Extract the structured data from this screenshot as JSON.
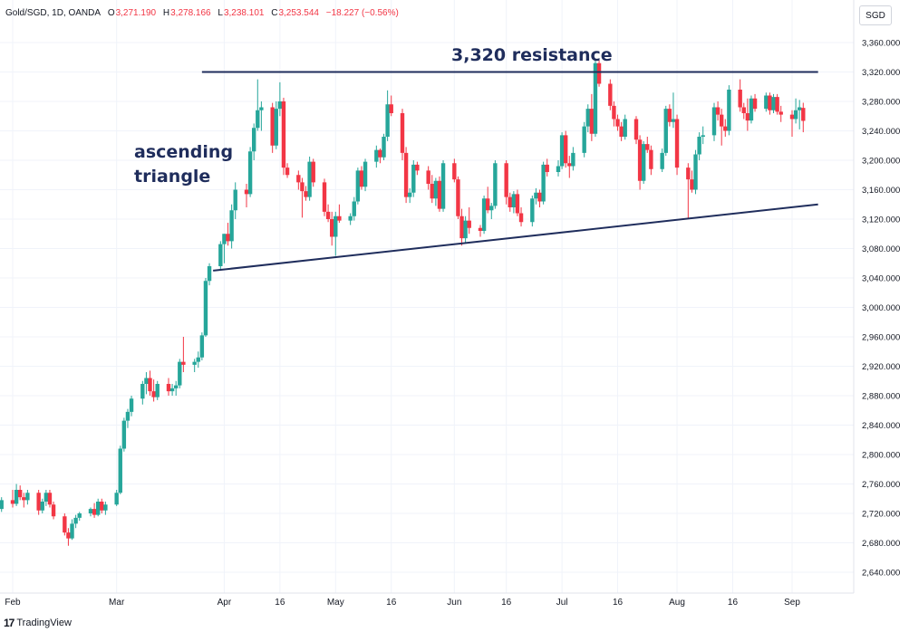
{
  "legend": {
    "symbol": "Gold/SGD, 1D, OANDA",
    "open_label": "O",
    "open": "3,271.190",
    "high_label": "H",
    "high": "3,278.166",
    "low_label": "L",
    "low": "3,238.101",
    "close_label": "C",
    "close": "3,253.544",
    "change": "−18.227 (−0.56%)"
  },
  "currency_button": "SGD",
  "branding": {
    "logo_mark": "17",
    "name": "TradingView"
  },
  "annotations": {
    "resistance": "3,320 resistance",
    "pattern_line1": "ascending",
    "pattern_line2": "triangle"
  },
  "colors": {
    "up": "#26a69a",
    "down": "#f23645",
    "trendline": "#1f2d5c",
    "grid": "#f0f3fa",
    "axis_text": "#131722"
  },
  "chart_data": {
    "type": "candlestick",
    "title": "",
    "xlabel": "",
    "ylabel": "",
    "ylim": [
      2610,
      3390
    ],
    "x_range": [
      "2025-01-30",
      "2025-09-08"
    ],
    "y_ticks": [
      "2,640.000",
      "2,680.000",
      "2,720.000",
      "2,760.000",
      "2,800.000",
      "2,840.000",
      "2,880.000",
      "2,920.000",
      "2,960.000",
      "3,000.000",
      "3,040.000",
      "3,080.000",
      "3,120.000",
      "3,160.000",
      "3,200.000",
      "3,240.000",
      "3,280.000",
      "3,320.000",
      "3,360.000"
    ],
    "y_tick_values": [
      2640,
      2680,
      2720,
      2760,
      2800,
      2840,
      2880,
      2920,
      2960,
      3000,
      3040,
      3080,
      3120,
      3160,
      3200,
      3240,
      3280,
      3320,
      3360
    ],
    "x_ticks": [
      {
        "label": "Feb",
        "date": "2025-02-03"
      },
      {
        "label": "Mar",
        "date": "2025-03-03"
      },
      {
        "label": "Apr",
        "date": "2025-04-01"
      },
      {
        "label": "16",
        "date": "2025-04-16"
      },
      {
        "label": "May",
        "date": "2025-05-01"
      },
      {
        "label": "16",
        "date": "2025-05-16"
      },
      {
        "label": "Jun",
        "date": "2025-06-02"
      },
      {
        "label": "16",
        "date": "2025-06-16"
      },
      {
        "label": "Jul",
        "date": "2025-07-01"
      },
      {
        "label": "16",
        "date": "2025-07-16"
      },
      {
        "label": "Aug",
        "date": "2025-08-01"
      },
      {
        "label": "16",
        "date": "2025-08-16"
      },
      {
        "label": "Sep",
        "date": "2025-09-01"
      }
    ],
    "trendlines": [
      {
        "name": "resistance",
        "from": {
          "date": "2025-03-26",
          "y": 3320
        },
        "to": {
          "date": "2025-09-08",
          "y": 3320
        }
      },
      {
        "name": "support",
        "from": {
          "date": "2025-03-29",
          "y": 3050
        },
        "to": {
          "date": "2025-09-08",
          "y": 3140
        }
      }
    ],
    "candles": [
      [
        "2025-01-30",
        2728,
        2736,
        2722,
        2726
      ],
      [
        "2025-01-31",
        2726,
        2742,
        2722,
        2738
      ],
      [
        "2025-02-03",
        2738,
        2752,
        2728,
        2733
      ],
      [
        "2025-02-04",
        2733,
        2760,
        2730,
        2752
      ],
      [
        "2025-02-05",
        2752,
        2758,
        2738,
        2742
      ],
      [
        "2025-02-06",
        2742,
        2748,
        2728,
        2738
      ],
      [
        "2025-02-07",
        2738,
        2752,
        2732,
        2748
      ],
      [
        "2025-02-10",
        2748,
        2752,
        2718,
        2724
      ],
      [
        "2025-02-11",
        2724,
        2740,
        2720,
        2736
      ],
      [
        "2025-02-12",
        2736,
        2752,
        2730,
        2748
      ],
      [
        "2025-02-13",
        2748,
        2752,
        2728,
        2732
      ],
      [
        "2025-02-14",
        2732,
        2736,
        2712,
        2716
      ],
      [
        "2025-02-17",
        2716,
        2720,
        2690,
        2694
      ],
      [
        "2025-02-18",
        2694,
        2700,
        2676,
        2686
      ],
      [
        "2025-02-19",
        2686,
        2712,
        2684,
        2706
      ],
      [
        "2025-02-20",
        2706,
        2718,
        2700,
        2714
      ],
      [
        "2025-02-21",
        2714,
        2722,
        2710,
        2720
      ],
      [
        "2025-02-24",
        2720,
        2728,
        2716,
        2726
      ],
      [
        "2025-02-25",
        2726,
        2734,
        2714,
        2718
      ],
      [
        "2025-02-26",
        2718,
        2740,
        2716,
        2736
      ],
      [
        "2025-02-27",
        2736,
        2740,
        2720,
        2724
      ],
      [
        "2025-02-28",
        2724,
        2736,
        2718,
        2732
      ],
      [
        "2025-03-03",
        2732,
        2752,
        2730,
        2748
      ],
      [
        "2025-03-04",
        2748,
        2812,
        2746,
        2808
      ],
      [
        "2025-03-05",
        2808,
        2850,
        2804,
        2846
      ],
      [
        "2025-03-06",
        2846,
        2862,
        2836,
        2858
      ],
      [
        "2025-03-07",
        2858,
        2880,
        2852,
        2876
      ],
      [
        "2025-03-10",
        2876,
        2900,
        2868,
        2896
      ],
      [
        "2025-03-11",
        2896,
        2912,
        2882,
        2904
      ],
      [
        "2025-03-12",
        2904,
        2914,
        2880,
        2886
      ],
      [
        "2025-03-13",
        2886,
        2902,
        2872,
        2878
      ],
      [
        "2025-03-14",
        2878,
        2900,
        2874,
        2896
      ],
      [
        "2025-03-17",
        2896,
        2904,
        2880,
        2886
      ],
      [
        "2025-03-18",
        2886,
        2896,
        2880,
        2890
      ],
      [
        "2025-03-19",
        2890,
        2900,
        2880,
        2894
      ],
      [
        "2025-03-20",
        2894,
        2930,
        2890,
        2926
      ],
      [
        "2025-03-21",
        2926,
        2960,
        2912,
        2922
      ],
      [
        "2025-03-24",
        2922,
        2930,
        2912,
        2926
      ],
      [
        "2025-03-25",
        2926,
        2940,
        2918,
        2932
      ],
      [
        "2025-03-26",
        2932,
        2966,
        2928,
        2962
      ],
      [
        "2025-03-27",
        2962,
        3040,
        2960,
        3036
      ],
      [
        "2025-03-28",
        3036,
        3060,
        3030,
        3056
      ],
      [
        "2025-03-31",
        3056,
        3090,
        3050,
        3086
      ],
      [
        "2025-04-01",
        3086,
        3100,
        3060,
        3100
      ],
      [
        "2025-04-02",
        3100,
        3115,
        3084,
        3090
      ],
      [
        "2025-04-03",
        3090,
        3140,
        3080,
        3132
      ],
      [
        "2025-04-04",
        3132,
        3170,
        3120,
        3160
      ],
      [
        "2025-04-07",
        3160,
        3168,
        3136,
        3154
      ],
      [
        "2025-04-08",
        3154,
        3218,
        3150,
        3212
      ],
      [
        "2025-04-09",
        3212,
        3250,
        3200,
        3244
      ],
      [
        "2025-04-10",
        3244,
        3310,
        3240,
        3268
      ],
      [
        "2025-04-11",
        3268,
        3280,
        3240,
        3272
      ],
      [
        "2025-04-14",
        3272,
        3278,
        3210,
        3220
      ],
      [
        "2025-04-15",
        3220,
        3280,
        3215,
        3270
      ],
      [
        "2025-04-16",
        3270,
        3306,
        3260,
        3280
      ],
      [
        "2025-04-17",
        3280,
        3285,
        3180,
        3190
      ],
      [
        "2025-04-18",
        3190,
        3196,
        3176,
        3180
      ],
      [
        "2025-04-21",
        3180,
        3186,
        3160,
        3170
      ],
      [
        "2025-04-22",
        3170,
        3176,
        3122,
        3158
      ],
      [
        "2025-04-23",
        3158,
        3165,
        3145,
        3150
      ],
      [
        "2025-04-24",
        3150,
        3205,
        3145,
        3198
      ],
      [
        "2025-04-25",
        3198,
        3202,
        3164,
        3170
      ],
      [
        "2025-04-28",
        3170,
        3175,
        3124,
        3130
      ],
      [
        "2025-04-29",
        3130,
        3140,
        3116,
        3120
      ],
      [
        "2025-04-30",
        3120,
        3130,
        3084,
        3096
      ],
      [
        "2025-05-01",
        3096,
        3130,
        3070,
        3124
      ],
      [
        "2025-05-02",
        3124,
        3140,
        3115,
        3118
      ],
      [
        "2025-05-05",
        3118,
        3128,
        3112,
        3124
      ],
      [
        "2025-05-06",
        3124,
        3150,
        3118,
        3144
      ],
      [
        "2025-05-07",
        3144,
        3190,
        3140,
        3186
      ],
      [
        "2025-05-08",
        3186,
        3192,
        3160,
        3164
      ],
      [
        "2025-05-09",
        3164,
        3202,
        3158,
        3198
      ],
      [
        "2025-05-12",
        3198,
        3220,
        3190,
        3214
      ],
      [
        "2025-05-13",
        3214,
        3216,
        3196,
        3204
      ],
      [
        "2025-05-14",
        3204,
        3236,
        3200,
        3232
      ],
      [
        "2025-05-15",
        3232,
        3295,
        3226,
        3276
      ],
      [
        "2025-05-16",
        3276,
        3288,
        3260,
        3264
      ],
      [
        "2025-05-19",
        3264,
        3270,
        3200,
        3210
      ],
      [
        "2025-05-20",
        3210,
        3218,
        3142,
        3150
      ],
      [
        "2025-05-21",
        3150,
        3162,
        3142,
        3156
      ],
      [
        "2025-05-22",
        3156,
        3200,
        3150,
        3194
      ],
      [
        "2025-05-23",
        3194,
        3198,
        3180,
        3186
      ],
      [
        "2025-05-26",
        3186,
        3192,
        3160,
        3168
      ],
      [
        "2025-05-27",
        3168,
        3180,
        3142,
        3148
      ],
      [
        "2025-05-28",
        3148,
        3176,
        3138,
        3172
      ],
      [
        "2025-05-29",
        3172,
        3178,
        3130,
        3134
      ],
      [
        "2025-05-30",
        3134,
        3200,
        3130,
        3196
      ],
      [
        "2025-06-02",
        3196,
        3202,
        3170,
        3174
      ],
      [
        "2025-06-03",
        3174,
        3178,
        3120,
        3124
      ],
      [
        "2025-06-04",
        3124,
        3134,
        3084,
        3094
      ],
      [
        "2025-06-05",
        3094,
        3124,
        3088,
        3118
      ],
      [
        "2025-06-06",
        3118,
        3136,
        3100,
        3108
      ],
      [
        "2025-06-09",
        3108,
        3112,
        3096,
        3104
      ],
      [
        "2025-06-10",
        3104,
        3152,
        3100,
        3148
      ],
      [
        "2025-06-11",
        3148,
        3164,
        3128,
        3132
      ],
      [
        "2025-06-12",
        3132,
        3142,
        3120,
        3138
      ],
      [
        "2025-06-13",
        3138,
        3200,
        3134,
        3196
      ],
      [
        "2025-06-16",
        3196,
        3200,
        3140,
        3150
      ],
      [
        "2025-06-17",
        3150,
        3156,
        3130,
        3136
      ],
      [
        "2025-06-18",
        3136,
        3158,
        3128,
        3154
      ],
      [
        "2025-06-19",
        3154,
        3160,
        3124,
        3128
      ],
      [
        "2025-06-20",
        3128,
        3136,
        3110,
        3116
      ],
      [
        "2025-06-23",
        3116,
        3152,
        3110,
        3148
      ],
      [
        "2025-06-24",
        3148,
        3162,
        3140,
        3156
      ],
      [
        "2025-06-25",
        3156,
        3160,
        3136,
        3144
      ],
      [
        "2025-06-26",
        3144,
        3198,
        3140,
        3194
      ],
      [
        "2025-06-27",
        3194,
        3202,
        3178,
        3184
      ],
      [
        "2025-06-30",
        3184,
        3200,
        3178,
        3192
      ],
      [
        "2025-07-01",
        3192,
        3238,
        3188,
        3234
      ],
      [
        "2025-07-02",
        3234,
        3240,
        3190,
        3196
      ],
      [
        "2025-07-03",
        3196,
        3206,
        3176,
        3192
      ],
      [
        "2025-07-04",
        3192,
        3218,
        3186,
        3210
      ],
      [
        "2025-07-07",
        3210,
        3252,
        3204,
        3246
      ],
      [
        "2025-07-08",
        3246,
        3276,
        3238,
        3270
      ],
      [
        "2025-07-09",
        3270,
        3290,
        3226,
        3236
      ],
      [
        "2025-07-10",
        3236,
        3336,
        3232,
        3332
      ],
      [
        "2025-07-11",
        3332,
        3336,
        3300,
        3304
      ],
      [
        "2025-07-14",
        3304,
        3310,
        3268,
        3274
      ],
      [
        "2025-07-15",
        3274,
        3280,
        3246,
        3256
      ],
      [
        "2025-07-16",
        3256,
        3262,
        3240,
        3246
      ],
      [
        "2025-07-17",
        3246,
        3252,
        3226,
        3232
      ],
      [
        "2025-07-18",
        3232,
        3262,
        3228,
        3256
      ],
      [
        "2025-07-21",
        3256,
        3260,
        3222,
        3228
      ],
      [
        "2025-07-22",
        3228,
        3234,
        3160,
        3172
      ],
      [
        "2025-07-23",
        3172,
        3226,
        3168,
        3222
      ],
      [
        "2025-07-24",
        3222,
        3232,
        3210,
        3214
      ],
      [
        "2025-07-25",
        3214,
        3220,
        3180,
        3188
      ],
      [
        "2025-07-28",
        3188,
        3216,
        3184,
        3210
      ],
      [
        "2025-07-29",
        3210,
        3274,
        3206,
        3270
      ],
      [
        "2025-07-30",
        3270,
        3276,
        3246,
        3252
      ],
      [
        "2025-07-31",
        3252,
        3292,
        3244,
        3256
      ],
      [
        "2025-08-01",
        3256,
        3262,
        3180,
        3190
      ],
      [
        "2025-08-04",
        3190,
        3196,
        3120,
        3174
      ],
      [
        "2025-08-05",
        3174,
        3186,
        3156,
        3160
      ],
      [
        "2025-08-06",
        3160,
        3214,
        3154,
        3208
      ],
      [
        "2025-08-07",
        3208,
        3238,
        3200,
        3232
      ],
      [
        "2025-08-08",
        3232,
        3246,
        3222,
        3234
      ],
      [
        "2025-08-11",
        3234,
        3278,
        3226,
        3272
      ],
      [
        "2025-08-12",
        3272,
        3280,
        3254,
        3262
      ],
      [
        "2025-08-13",
        3262,
        3270,
        3220,
        3246
      ],
      [
        "2025-08-14",
        3246,
        3256,
        3232,
        3240
      ],
      [
        "2025-08-15",
        3240,
        3302,
        3234,
        3296
      ],
      [
        "2025-08-18",
        3296,
        3310,
        3266,
        3272
      ],
      [
        "2025-08-19",
        3272,
        3278,
        3256,
        3264
      ],
      [
        "2025-08-20",
        3264,
        3284,
        3240,
        3254
      ],
      [
        "2025-08-21",
        3254,
        3288,
        3250,
        3284
      ],
      [
        "2025-08-22",
        3284,
        3290,
        3266,
        3270
      ],
      [
        "2025-08-25",
        3270,
        3292,
        3266,
        3288
      ],
      [
        "2025-08-26",
        3288,
        3292,
        3262,
        3268
      ],
      [
        "2025-08-27",
        3268,
        3290,
        3264,
        3286
      ],
      [
        "2025-08-28",
        3286,
        3290,
        3262,
        3266
      ],
      [
        "2025-08-29",
        3266,
        3274,
        3252,
        3262
      ],
      [
        "2025-09-01",
        3262,
        3268,
        3232,
        3256
      ],
      [
        "2025-09-02",
        3256,
        3284,
        3250,
        3268
      ],
      [
        "2025-09-03",
        3268,
        3282,
        3242,
        3272
      ],
      [
        "2025-09-04",
        3271.19,
        3278.166,
        3238.101,
        3253.544
      ]
    ]
  }
}
